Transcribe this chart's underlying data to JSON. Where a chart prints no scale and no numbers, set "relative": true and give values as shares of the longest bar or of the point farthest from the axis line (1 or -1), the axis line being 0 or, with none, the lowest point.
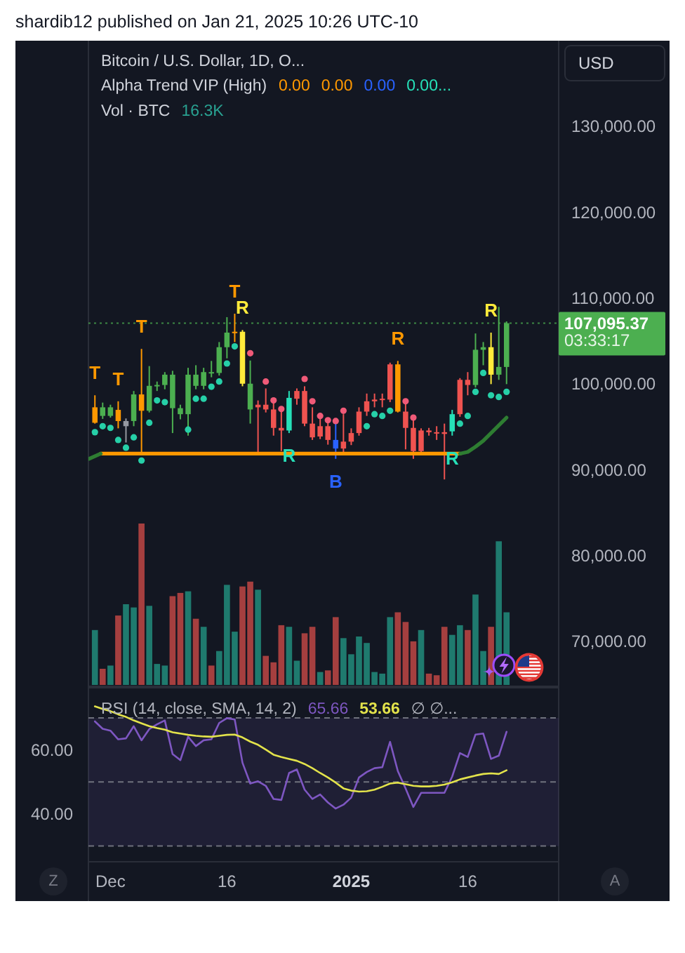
{
  "chart_data": [
    {
      "type": "candlestick",
      "title": "Bitcoin / U.S. Dollar, 1D, O...",
      "subtitle": "Alpha Trend VIP (High)",
      "ylabel": "USD",
      "x": [
        "2024-11-29",
        "2024-11-30",
        "2024-12-01",
        "2024-12-02",
        "2024-12-03",
        "2024-12-04",
        "2024-12-05",
        "2024-12-06",
        "2024-12-07",
        "2024-12-08",
        "2024-12-09",
        "2024-12-10",
        "2024-12-11",
        "2024-12-12",
        "2024-12-13",
        "2024-12-14",
        "2024-12-15",
        "2024-12-16",
        "2024-12-17",
        "2024-12-18",
        "2024-12-19",
        "2024-12-20",
        "2024-12-21",
        "2024-12-22",
        "2024-12-23",
        "2024-12-24",
        "2024-12-25",
        "2024-12-26",
        "2024-12-27",
        "2024-12-28",
        "2024-12-29",
        "2024-12-30",
        "2024-12-31",
        "2025-01-01",
        "2025-01-02",
        "2025-01-03",
        "2025-01-04",
        "2025-01-05",
        "2025-01-06",
        "2025-01-07",
        "2025-01-08",
        "2025-01-09",
        "2025-01-10",
        "2025-01-11",
        "2025-01-12",
        "2025-01-13",
        "2025-01-14",
        "2025-01-15",
        "2025-01-16",
        "2025-01-17",
        "2025-01-18",
        "2025-01-19",
        "2025-01-20",
        "2025-01-21"
      ],
      "ohlc": [
        [
          97300,
          98700,
          95400,
          95500
        ],
        [
          96300,
          97850,
          95950,
          97300
        ],
        [
          96300,
          97600,
          96100,
          97300
        ],
        [
          97000,
          98000,
          94850,
          95700
        ],
        [
          95100,
          96000,
          93200,
          95700
        ],
        [
          95700,
          99200,
          95100,
          98800
        ],
        [
          98800,
          104100,
          92100,
          96900
        ],
        [
          96900,
          102100,
          96700,
          99800
        ],
        [
          99800,
          100300,
          99200,
          99900
        ],
        [
          99900,
          101400,
          99400,
          101100
        ],
        [
          97200,
          101550,
          94300,
          101100
        ],
        [
          96500,
          97600,
          95900,
          97200
        ],
        [
          96500,
          101900,
          94000,
          101100
        ],
        [
          99800,
          102200,
          99400,
          101100
        ],
        [
          99800,
          101900,
          99400,
          101400
        ],
        [
          101300,
          102700,
          100800,
          101400
        ],
        [
          101300,
          104900,
          101000,
          104300
        ],
        [
          104300,
          107800,
          103000,
          106000
        ],
        [
          106100,
          108200,
          104900,
          106000
        ],
        [
          106100,
          106300,
          99750,
          100050
        ],
        [
          97050,
          102750,
          95400,
          100050
        ],
        [
          97600,
          98100,
          92000,
          97300
        ],
        [
          97600,
          99500,
          96700,
          97050
        ],
        [
          97050,
          98100,
          94000,
          94900
        ],
        [
          94900,
          97300,
          92200,
          94600
        ],
        [
          94600,
          99200,
          94300,
          98400
        ],
        [
          99200,
          99500,
          97600,
          98300
        ],
        [
          99200,
          99750,
          95100,
          95400
        ],
        [
          95400,
          97300,
          93500,
          93800
        ],
        [
          95100,
          96300,
          93600,
          93900
        ],
        [
          95100,
          95900,
          92950,
          93500
        ],
        [
          93500,
          95650,
          91300,
          92500
        ],
        [
          93300,
          96500,
          92100,
          92500
        ],
        [
          94300,
          94850,
          92900,
          93300
        ],
        [
          96800,
          97300,
          94000,
          94300
        ],
        [
          98000,
          98900,
          96300,
          96800
        ],
        [
          98200,
          98900,
          97300,
          98000
        ],
        [
          98300,
          98900,
          97300,
          98200
        ],
        [
          102300,
          102500,
          97900,
          98200
        ],
        [
          102300,
          102700,
          96700,
          96800
        ],
        [
          96800,
          98100,
          92400,
          94900
        ],
        [
          94900,
          96200,
          91300,
          92200
        ],
        [
          94600,
          94850,
          91850,
          92200
        ],
        [
          94600,
          94900,
          94000,
          94400
        ],
        [
          94400,
          95100,
          93500,
          94300
        ],
        [
          94400,
          95400,
          88900,
          94200
        ],
        [
          94500,
          97000,
          94000,
          96500
        ],
        [
          100500,
          100700,
          96200,
          96500
        ],
        [
          100500,
          101400,
          98700,
          99900
        ],
        [
          99900,
          105900,
          99600,
          104000
        ],
        [
          104000,
          104900,
          102200,
          104300
        ],
        [
          104300,
          106000,
          100000,
          101100
        ],
        [
          101100,
          109000,
          100500,
          102000
        ],
        [
          102000,
          107300,
          100000,
          107095.37
        ]
      ],
      "colors": [
        "#ff9800",
        "#4caf50",
        "#4caf50",
        "#ff9800",
        "#9598a1",
        "#4caf50",
        "#ff9800",
        "#4caf50",
        "#4caf50",
        "#4caf50",
        "#4caf50",
        "#4caf50",
        "#4caf50",
        "#4caf50",
        "#4caf50",
        "#4caf50",
        "#4caf50",
        "#4caf50",
        "#ff9800",
        "#ffeb3b",
        "#4caf50",
        "#ef5350",
        "#ef5350",
        "#ef5350",
        "#ef5350",
        "#26e0b8",
        "#ef5350",
        "#ef5350",
        "#ef5350",
        "#ef5350",
        "#ef5350",
        "#2962ff",
        "#ef5350",
        "#ef5350",
        "#ef5350",
        "#ef5350",
        "#ef5350",
        "#ef5350",
        "#ef5350",
        "#ff9800",
        "#ef5350",
        "#ef5350",
        "#ef5350",
        "#ef5350",
        "#ef5350",
        "#ef5350",
        "#26e0b8",
        "#ef5350",
        "#ef5350",
        "#4caf50",
        "#4caf50",
        "#ffeb3b",
        "#4caf50",
        "#4caf50"
      ],
      "xlim": [
        "2024-11-28T04:00",
        "2025-01-27T17:00"
      ],
      "ylim": [
        64800,
        140000
      ],
      "yticks": [
        {
          "value": 70000,
          "label": "70,000.00"
        },
        {
          "value": 80000,
          "label": "80,000.00"
        },
        {
          "value": 90000,
          "label": "90,000.00"
        },
        {
          "value": 100000,
          "label": "100,000.00"
        },
        {
          "value": 110000,
          "label": "110,000.00"
        },
        {
          "value": 120000,
          "label": "120,000.00"
        },
        {
          "value": 130000,
          "label": "130,000.00"
        }
      ],
      "tick_labels": "y",
      "series": [
        {
          "type": "line",
          "color": "#ff9800",
          "x": [
            "2024-11-29T18:00",
            "2025-01-15"
          ],
          "values": [
            91900,
            91900
          ]
        },
        {
          "type": "line",
          "color": "#2e7d32",
          "x": [
            "2024-11-28T06:00",
            "2024-11-29T18:00",
            "2024-12-31",
            "2025-01-15",
            "2025-01-16",
            "2025-01-17",
            "2025-01-18",
            "2025-01-19",
            "2025-01-20",
            "2025-01-21"
          ],
          "values": [
            91300,
            91900,
            null,
            91900,
            92100,
            92700,
            93400,
            94300,
            95200,
            96100
          ]
        },
        {
          "type": "scatter",
          "marker": "circle",
          "color": "#26d0a8",
          "values": [
            94400,
            95100,
            94900,
            93500,
            92600,
            93800,
            91100,
            95500,
            98100,
            97900,
            null,
            null,
            94700,
            98300,
            98300,
            99700,
            100300,
            102400,
            104400,
            null,
            null,
            null,
            null,
            null,
            null,
            null,
            null,
            null,
            null,
            null,
            null,
            null,
            null,
            null,
            null,
            95100,
            96500,
            96300,
            96900,
            null,
            null,
            null,
            null,
            null,
            null,
            null,
            null,
            95400,
            96300,
            99100,
            101300,
            98700,
            98500,
            99100
          ]
        },
        {
          "type": "scatter",
          "marker": "circle",
          "color": "#f05a78",
          "values": [
            null,
            null,
            null,
            null,
            null,
            null,
            null,
            null,
            null,
            null,
            null,
            null,
            null,
            null,
            null,
            null,
            null,
            null,
            null,
            null,
            103600,
            null,
            100300,
            98100,
            97100,
            null,
            null,
            100600,
            98000,
            96300,
            95800,
            95700,
            96900,
            null,
            null,
            null,
            null,
            null,
            null,
            null,
            98000,
            96100,
            null,
            null,
            null,
            null,
            null,
            null,
            null,
            null,
            null,
            null,
            null,
            null
          ]
        }
      ],
      "ref_lines": [
        {
          "axis": "y",
          "value": 107095.37,
          "label": "107,095.37",
          "color": "#4caf50",
          "line_style": "dotted"
        }
      ],
      "annotations": [
        "shardib12 published on Jan 21, 2025 10:26 UTC-10",
        "0.00",
        "0.00",
        "0.00",
        "0.00...",
        "03:33:17",
        {
          "text": "T",
          "x": "2024-11-29",
          "y": 98700
        },
        {
          "text": "T",
          "x": "2024-12-02",
          "y": 98000
        },
        {
          "text": "T",
          "x": "2024-12-05",
          "y": 104100
        },
        {
          "text": "T",
          "x": "2024-12-17",
          "y": 108200
        },
        {
          "text": "R",
          "x": "2024-12-18",
          "y": 106300
        },
        {
          "text": "R",
          "x": "2024-12-24",
          "y": 94300
        },
        {
          "text": "B",
          "x": "2024-12-30",
          "y": 91300
        },
        {
          "text": "R",
          "x": "2025-01-07",
          "y": 102700
        },
        {
          "text": "R",
          "x": "2025-01-14",
          "y": 94000
        },
        {
          "text": "R",
          "x": "2025-01-19",
          "y": 106000
        }
      ]
    },
    {
      "type": "bar",
      "title": "Vol · BTC",
      "annotations": [
        "16.3K"
      ],
      "relative": true,
      "tick_labels": false,
      "xlim": [
        "2024-11-28T04:00",
        "2025-01-27T17:00"
      ],
      "x": [
        "2024-11-29",
        "2024-11-30",
        "2024-12-01",
        "2024-12-02",
        "2024-12-03",
        "2024-12-04",
        "2024-12-05",
        "2024-12-06",
        "2024-12-07",
        "2024-12-08",
        "2024-12-09",
        "2024-12-10",
        "2024-12-11",
        "2024-12-12",
        "2024-12-13",
        "2024-12-14",
        "2024-12-15",
        "2024-12-16",
        "2024-12-17",
        "2024-12-18",
        "2024-12-19",
        "2024-12-20",
        "2024-12-21",
        "2024-12-22",
        "2024-12-23",
        "2024-12-24",
        "2024-12-25",
        "2024-12-26",
        "2024-12-27",
        "2024-12-28",
        "2024-12-29",
        "2024-12-30",
        "2024-12-31",
        "2025-01-01",
        "2025-01-02",
        "2025-01-03",
        "2025-01-04",
        "2025-01-05",
        "2025-01-06",
        "2025-01-07",
        "2025-01-08",
        "2025-01-09",
        "2025-01-10",
        "2025-01-11",
        "2025-01-12",
        "2025-01-13",
        "2025-01-14",
        "2025-01-15",
        "2025-01-16",
        "2025-01-17",
        "2025-01-18",
        "2025-01-19",
        "2025-01-20",
        "2025-01-21"
      ],
      "values": [
        0.34,
        0.1,
        0.12,
        0.43,
        0.5,
        0.48,
        1,
        0.49,
        0.13,
        0.12,
        0.55,
        0.57,
        0.58,
        0.41,
        0.36,
        0.12,
        0.21,
        0.62,
        0.33,
        0.61,
        0.64,
        0.59,
        0.18,
        0.14,
        0.37,
        0.36,
        0.15,
        0.32,
        0.36,
        0.08,
        0.09,
        0.42,
        0.29,
        0.19,
        0.3,
        0.26,
        0.08,
        0.07,
        0.42,
        0.45,
        0.39,
        0.27,
        0.34,
        0.07,
        0.06,
        0.36,
        0.31,
        0.37,
        0.34,
        0.56,
        0.21,
        0.36,
        0.89,
        0.45
      ],
      "colors": [
        "#1f7a6e",
        "#a53f3f",
        "#1f7a6e",
        "#a53f3f",
        "#1f7a6e",
        "#1f7a6e",
        "#a53f3f",
        "#1f7a6e",
        "#1f7a6e",
        "#1f7a6e",
        "#a53f3f",
        "#a53f3f",
        "#1f7a6e",
        "#a53f3f",
        "#1f7a6e",
        "#a53f3f",
        "#1f7a6e",
        "#1f7a6e",
        "#1f7a6e",
        "#a53f3f",
        "#a53f3f",
        "#1f7a6e",
        "#a53f3f",
        "#a53f3f",
        "#a53f3f",
        "#1f7a6e",
        "#1f7a6e",
        "#a53f3f",
        "#a53f3f",
        "#1f7a6e",
        "#a53f3f",
        "#a53f3f",
        "#1f7a6e",
        "#1f7a6e",
        "#1f7a6e",
        "#1f7a6e",
        "#1f7a6e",
        "#1f7a6e",
        "#1f7a6e",
        "#a53f3f",
        "#a53f3f",
        "#a53f3f",
        "#1f7a6e",
        "#a53f3f",
        "#a53f3f",
        "#a53f3f",
        "#1f7a6e",
        "#1f7a6e",
        "#a53f3f",
        "#1f7a6e",
        "#1f7a6e",
        "#a53f3f",
        "#1f7a6e",
        "#1f7a6e"
      ]
    },
    {
      "type": "line",
      "title": "RSI (14, close, SMA, 14, 2)",
      "x": [
        "2024-11-29",
        "2024-11-30",
        "2024-12-01",
        "2024-12-02",
        "2024-12-03",
        "2024-12-04",
        "2024-12-05",
        "2024-12-06",
        "2024-12-07",
        "2024-12-08",
        "2024-12-09",
        "2024-12-10",
        "2024-12-11",
        "2024-12-12",
        "2024-12-13",
        "2024-12-14",
        "2024-12-15",
        "2024-12-16",
        "2024-12-17",
        "2024-12-18",
        "2024-12-19",
        "2024-12-20",
        "2024-12-21",
        "2024-12-22",
        "2024-12-23",
        "2024-12-24",
        "2024-12-25",
        "2024-12-26",
        "2024-12-27",
        "2024-12-28",
        "2024-12-29",
        "2024-12-30",
        "2024-12-31",
        "2025-01-01",
        "2025-01-02",
        "2025-01-03",
        "2025-01-04",
        "2025-01-05",
        "2025-01-06",
        "2025-01-07",
        "2025-01-08",
        "2025-01-09",
        "2025-01-10",
        "2025-01-11",
        "2025-01-12",
        "2025-01-13",
        "2025-01-14",
        "2025-01-15",
        "2025-01-16",
        "2025-01-17",
        "2025-01-18",
        "2025-01-19",
        "2025-01-20",
        "2025-01-21"
      ],
      "series": [
        {
          "color": "#7e57c2",
          "values": [
            68.9,
            66.6,
            66.0,
            63.3,
            63.6,
            67.4,
            63.0,
            66.5,
            68.0,
            69.2,
            58.7,
            56.8,
            64.1,
            61.2,
            63.0,
            63.3,
            68.4,
            69.9,
            69.5,
            56.0,
            49.5,
            50.2,
            48.8,
            44.7,
            44.4,
            52.8,
            53.9,
            47.6,
            44.7,
            46.1,
            43.6,
            41.7,
            42.9,
            45.1,
            51.4,
            53.1,
            54.3,
            54.6,
            62.5,
            53.4,
            48.0,
            42.2,
            46.6,
            46.6,
            46.6,
            46.6,
            51.7,
            59.0,
            57.8,
            64.8,
            65.1,
            57.2,
            58.2,
            65.66
          ]
        },
        {
          "color": "#e3e34b",
          "values": [
            73.6,
            72.8,
            72.1,
            71.1,
            70.3,
            69.2,
            68.3,
            67.4,
            66.8,
            66.3,
            65.5,
            65.1,
            64.7,
            64.4,
            64.2,
            64.1,
            64.4,
            64.7,
            64.8,
            63.9,
            62.6,
            61.6,
            60.1,
            58.5,
            57.8,
            57.2,
            56.6,
            55.6,
            54.3,
            52.8,
            51.4,
            49.8,
            48.0,
            47.3,
            47.0,
            47.1,
            47.6,
            48.5,
            49.5,
            49.8,
            49.3,
            48.8,
            48.6,
            48.6,
            48.8,
            49.2,
            49.9,
            50.8,
            51.4,
            52.0,
            52.5,
            52.7,
            52.5,
            53.66
          ]
        }
      ],
      "xlim": [
        "2024-11-28T04:00",
        "2025-01-27T17:00"
      ],
      "xticks": [
        {
          "value": "2024-12-01",
          "label": "Dec"
        },
        {
          "value": "2024-12-16",
          "label": "16"
        },
        {
          "value": "2025-01-01",
          "label": "2025"
        },
        {
          "value": "2025-01-16",
          "label": "16"
        }
      ],
      "ylim": [
        25.1,
        79.4
      ],
      "yticks": [
        {
          "value": 40,
          "label": "40.00"
        },
        {
          "value": 60,
          "label": "60.00"
        }
      ],
      "ref_lines": [
        {
          "axis": "y",
          "value": 70,
          "color": "#787b86",
          "line_style": "dashed"
        },
        {
          "axis": "y",
          "value": 50,
          "color": "#787b86",
          "line_style": "dashed"
        },
        {
          "axis": "y",
          "value": 30,
          "color": "#787b86",
          "line_style": "dashed"
        }
      ],
      "bands": [
        {
          "axis": "y",
          "from": 30,
          "to": 70,
          "color": "#7e57c2"
        }
      ],
      "annotations": [
        "65.66",
        "53.66",
        "∅ ∅...",
        "Z",
        "A"
      ]
    }
  ]
}
